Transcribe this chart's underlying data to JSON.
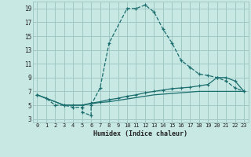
{
  "xlabel": "Humidex (Indice chaleur)",
  "xlim": [
    -0.5,
    23.5
  ],
  "ylim": [
    2.5,
    20.0
  ],
  "xticks": [
    0,
    1,
    2,
    3,
    4,
    5,
    6,
    7,
    8,
    9,
    10,
    11,
    12,
    13,
    14,
    15,
    16,
    17,
    18,
    19,
    20,
    21,
    22,
    23
  ],
  "yticks": [
    3,
    5,
    7,
    9,
    11,
    13,
    15,
    17,
    19
  ],
  "bg_color": "#c8e8e4",
  "grid_color": "#a0c8c4",
  "line_color": "#1a6e6e",
  "s1_x": [
    0,
    1,
    2,
    3,
    4,
    5,
    5,
    6,
    6,
    7,
    8,
    10,
    11,
    12,
    13,
    14,
    15,
    16,
    17,
    18,
    19,
    20,
    21,
    22,
    23
  ],
  "s1_y": [
    6.5,
    6.0,
    5.0,
    5.0,
    4.7,
    4.7,
    4.0,
    3.5,
    5.0,
    7.5,
    14.0,
    19.0,
    19.0,
    19.5,
    18.5,
    16.0,
    14.0,
    11.5,
    10.5,
    9.5,
    9.3,
    9.0,
    8.5,
    7.5,
    7.0
  ],
  "s2_x": [
    0,
    3,
    4,
    5,
    6,
    7,
    8,
    9,
    10,
    11,
    12,
    13,
    14,
    15,
    16,
    17,
    18,
    19,
    20,
    21,
    22,
    23
  ],
  "s2_y": [
    6.5,
    5.0,
    5.0,
    5.0,
    5.3,
    5.5,
    5.8,
    6.0,
    6.3,
    6.5,
    6.8,
    7.0,
    7.2,
    7.4,
    7.5,
    7.6,
    7.8,
    8.0,
    9.0,
    9.0,
    8.5,
    7.0
  ],
  "s3_x": [
    0,
    3,
    4,
    5,
    6,
    7,
    8,
    9,
    10,
    11,
    12,
    13,
    14,
    15,
    16,
    17,
    18,
    19,
    20,
    21,
    22,
    23
  ],
  "s3_y": [
    6.5,
    5.0,
    5.0,
    5.0,
    5.2,
    5.4,
    5.5,
    5.7,
    5.9,
    6.1,
    6.3,
    6.5,
    6.6,
    6.7,
    6.8,
    6.9,
    7.0,
    7.0,
    7.0,
    7.0,
    7.0,
    7.0
  ]
}
